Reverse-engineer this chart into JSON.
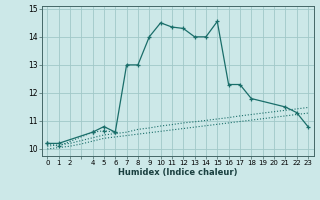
{
  "xlabel": "Humidex (Indice chaleur)",
  "x": [
    0,
    1,
    2,
    3,
    4,
    5,
    6,
    7,
    8,
    9,
    10,
    11,
    12,
    13,
    14,
    15,
    16,
    17,
    18,
    19,
    20,
    21,
    22,
    23
  ],
  "line1_x": [
    0,
    1,
    4,
    5,
    6,
    7,
    8,
    9,
    10,
    11,
    12,
    13,
    14,
    15,
    16,
    17,
    18,
    21,
    22,
    23
  ],
  "line1_y": [
    10.2,
    10.2,
    10.6,
    10.8,
    10.6,
    13.0,
    13.0,
    14.0,
    14.5,
    14.35,
    14.3,
    14.0,
    14.0,
    14.55,
    12.3,
    12.3,
    11.8,
    11.5,
    11.3,
    10.8
  ],
  "line2_x": [
    0,
    1,
    4,
    5,
    6
  ],
  "line2_y": [
    10.2,
    10.1,
    10.6,
    10.65,
    10.6
  ],
  "line3_x": [
    0,
    1,
    2,
    3,
    4,
    5,
    6,
    7,
    8,
    9,
    10,
    11,
    12,
    13,
    14,
    15,
    16,
    17,
    18,
    19,
    20,
    21,
    22,
    23
  ],
  "line3_y": [
    10.1,
    10.15,
    10.2,
    10.3,
    10.4,
    10.5,
    10.55,
    10.6,
    10.7,
    10.75,
    10.82,
    10.87,
    10.93,
    10.97,
    11.02,
    11.07,
    11.12,
    11.18,
    11.23,
    11.28,
    11.33,
    11.38,
    11.43,
    11.48
  ],
  "line4_x": [
    0,
    1,
    2,
    3,
    4,
    5,
    6,
    7,
    8,
    9,
    10,
    11,
    12,
    13,
    14,
    15,
    16,
    17,
    18,
    19,
    20,
    21,
    22,
    23
  ],
  "line4_y": [
    10.0,
    10.05,
    10.1,
    10.18,
    10.28,
    10.38,
    10.43,
    10.48,
    10.53,
    10.58,
    10.63,
    10.68,
    10.73,
    10.78,
    10.83,
    10.88,
    10.93,
    10.98,
    11.03,
    11.08,
    11.13,
    11.18,
    11.23,
    11.28
  ],
  "bg_color": "#cce8e8",
  "grid_color": "#a0c8c8",
  "line_color": "#1a6e6a",
  "ylim": [
    9.75,
    15.1
  ],
  "yticks": [
    10,
    11,
    12,
    13,
    14,
    15
  ],
  "xlim": [
    -0.5,
    23.5
  ],
  "xtick_labels": [
    "0",
    "1",
    "2",
    "",
    "4",
    "5",
    "6",
    "7",
    "8",
    "9",
    "10",
    "11",
    "12",
    "13",
    "14",
    "15",
    "16",
    "17",
    "18",
    "19",
    "20",
    "21",
    "22",
    "23"
  ]
}
